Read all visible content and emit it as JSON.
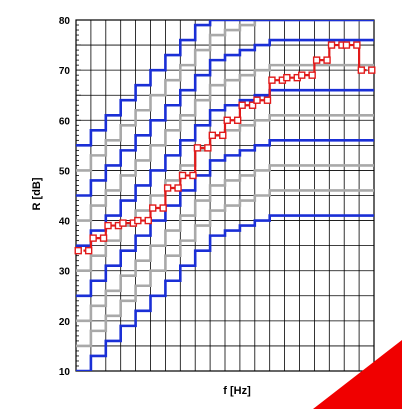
{
  "chart_data": {
    "type": "line",
    "xlabel": "f [Hz]",
    "ylabel": "R  [dB]",
    "ylim": [
      10,
      80
    ],
    "yticks": [
      10,
      20,
      30,
      40,
      50,
      60,
      70,
      80
    ],
    "x_bands": 20,
    "grid": true,
    "colors": {
      "blue": "#1a2fd6",
      "grey": "#a9a9a9",
      "red": "#e11a1a",
      "marker_fill": "#ffffff"
    },
    "reference_curves": [
      {
        "color": "grey",
        "values": [
          15,
          18,
          21,
          24,
          27,
          30,
          33,
          36,
          39,
          42,
          43,
          44,
          45,
          46,
          46,
          46,
          46,
          46,
          46,
          46
        ]
      },
      {
        "color": "blue",
        "values": [
          10,
          13,
          16,
          19,
          22,
          25,
          28,
          31,
          34,
          37,
          38,
          39,
          40,
          41,
          41,
          41,
          41,
          41,
          41,
          41
        ]
      },
      {
        "color": "grey",
        "values": [
          20,
          23,
          26,
          29,
          32,
          35,
          38,
          41,
          44,
          47,
          48,
          49,
          50,
          51,
          51,
          51,
          51,
          51,
          51,
          51
        ]
      },
      {
        "color": "blue",
        "values": [
          25,
          28,
          31,
          34,
          37,
          40,
          43,
          46,
          49,
          52,
          53,
          54,
          55,
          56,
          56,
          56,
          56,
          56,
          56,
          56
        ]
      },
      {
        "color": "grey",
        "values": [
          30,
          33,
          36,
          39,
          42,
          45,
          48,
          51,
          54,
          57,
          58,
          59,
          60,
          61,
          61,
          61,
          61,
          61,
          61,
          61
        ]
      },
      {
        "color": "blue",
        "values": [
          35,
          38,
          41,
          44,
          47,
          50,
          53,
          56,
          59,
          62,
          63,
          64,
          65,
          66,
          66,
          66,
          66,
          66,
          66,
          66
        ]
      },
      {
        "color": "grey",
        "values": [
          40,
          43,
          46,
          49,
          52,
          55,
          58,
          61,
          64,
          67,
          68,
          69,
          70,
          71,
          71,
          71,
          71,
          71,
          71,
          71
        ]
      },
      {
        "color": "blue",
        "values": [
          45,
          48,
          51,
          54,
          57,
          60,
          63,
          66,
          69,
          72,
          73,
          74,
          75,
          76,
          76,
          76,
          76,
          76,
          76,
          76
        ]
      },
      {
        "color": "grey",
        "values": [
          50,
          53,
          56,
          59,
          62,
          65,
          68,
          71,
          74,
          77,
          78,
          79,
          80,
          81,
          81,
          81,
          81,
          81,
          81,
          81
        ]
      },
      {
        "color": "blue",
        "values": [
          55,
          58,
          61,
          64,
          67,
          70,
          73,
          76,
          79,
          82,
          83,
          84,
          85,
          86,
          86,
          86,
          86,
          86,
          86,
          86
        ]
      }
    ],
    "series": [
      {
        "color": "red",
        "marker": "square",
        "values": [
          34,
          36.5,
          39,
          39.5,
          40,
          42.5,
          46.5,
          49,
          54.5,
          57,
          60,
          63,
          64,
          68,
          68.5,
          69,
          72,
          75,
          75,
          70
        ]
      }
    ]
  }
}
